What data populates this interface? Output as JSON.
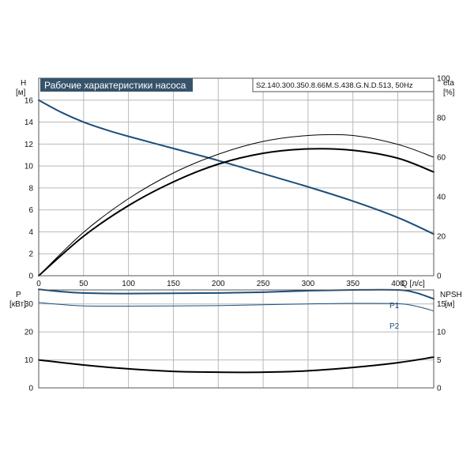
{
  "chart_data": [
    {
      "type": "line",
      "title": "Рабочие характеристики насоса",
      "model": "S2.140.300.350.8.66M.S.438.G.N.D.513, 50Hz",
      "ylabel_left": "H",
      "ylabel_left_unit": "[м]",
      "ylabel_right": "eta",
      "ylabel_right_unit": "[%]",
      "xlabel": "Q [л/с]",
      "xlim": [
        0,
        440
      ],
      "ylim_left": [
        0,
        18
      ],
      "ylim_right": [
        0,
        100
      ],
      "x_ticks": [
        "0",
        "50",
        "100",
        "150",
        "200",
        "250",
        "300",
        "350",
        "400"
      ],
      "y_left_ticks": [
        "0",
        "2",
        "4",
        "6",
        "8",
        "10",
        "12",
        "14",
        "16"
      ],
      "y_right_ticks": [
        "0",
        "20",
        "40",
        "60",
        "80",
        "100"
      ],
      "grid": true,
      "series": [
        {
          "name": "",
          "axis": "left",
          "color": "#1c4e7a",
          "x": [
            0,
            25,
            50,
            75,
            100,
            150,
            200,
            250,
            300,
            350,
            400,
            440
          ],
          "y": [
            16.0,
            14.9,
            14.0,
            13.3,
            12.7,
            11.6,
            10.5,
            9.3,
            8.1,
            6.8,
            5.3,
            3.8
          ]
        },
        {
          "name": "",
          "axis": "right",
          "color": "#000000",
          "x": [
            0,
            50,
            100,
            150,
            200,
            250,
            300,
            350,
            400,
            440
          ],
          "y": [
            0,
            20,
            35.5,
            47.5,
            56.5,
            62,
            64.2,
            63.5,
            59.5,
            52.5
          ]
        },
        {
          "name": "",
          "axis": "right",
          "color": "#000000",
          "x": [
            0,
            50,
            100,
            150,
            200,
            250,
            300,
            350,
            400,
            440
          ],
          "y": [
            0,
            22,
            39,
            52,
            61.5,
            68,
            71,
            71,
            66.5,
            60
          ]
        }
      ]
    },
    {
      "type": "line",
      "ylabel_left": "P",
      "ylabel_left_unit": "[кВт]",
      "ylabel_right": "NPSH",
      "ylabel_right_unit": "[м]",
      "xlim": [
        0,
        440
      ],
      "ylim_left": [
        0,
        35
      ],
      "ylim_right": [
        0,
        17.5
      ],
      "y_left_ticks": [
        "0",
        "10",
        "20",
        "30"
      ],
      "y_right_ticks": [
        "0",
        "5",
        "10",
        "15"
      ],
      "grid": true,
      "series": [
        {
          "name": "P1",
          "axis": "left",
          "color": "#1c4e7a",
          "x": [
            0,
            25,
            50,
            100,
            150,
            200,
            250,
            300,
            350,
            400,
            420,
            440
          ],
          "y": [
            35.2,
            34.4,
            33.9,
            33.7,
            33.8,
            33.9,
            34.2,
            34.7,
            35.0,
            35.0,
            34.0,
            31.8
          ]
        },
        {
          "name": "P2",
          "axis": "left",
          "color": "#1c4e7a",
          "x": [
            0,
            25,
            50,
            100,
            150,
            200,
            250,
            300,
            350,
            400,
            420,
            440
          ],
          "y": [
            30.5,
            29.8,
            29.3,
            29.2,
            29.3,
            29.4,
            29.7,
            30.0,
            30.2,
            30.1,
            29.2,
            27.5
          ]
        },
        {
          "name": "",
          "axis": "right",
          "color": "#000000",
          "x": [
            0,
            50,
            100,
            150,
            200,
            250,
            300,
            350,
            400,
            440
          ],
          "y": [
            5.0,
            4.1,
            3.4,
            2.95,
            2.8,
            2.8,
            3.05,
            3.65,
            4.5,
            5.5
          ]
        }
      ]
    }
  ]
}
